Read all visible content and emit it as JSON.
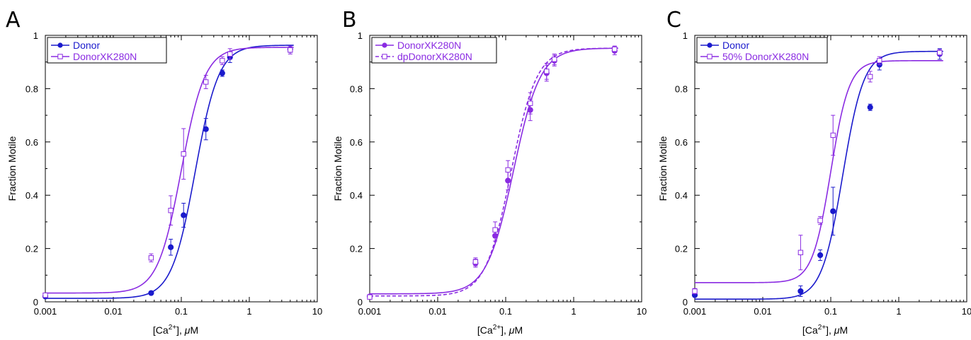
{
  "colors": {
    "donor": "#1a1acc",
    "mutant": "#8a2be2",
    "axis": "#000000"
  },
  "chart_data": [
    {
      "panel": "A",
      "type": "scatter",
      "xscale": "log",
      "xlim": [
        0.001,
        10
      ],
      "ylim": [
        0,
        1
      ],
      "xticks": [
        0.001,
        0.01,
        0.1,
        1,
        10
      ],
      "xtick_labels": [
        "0.001",
        "0.01",
        "0.1",
        "1",
        "10"
      ],
      "yticks": [
        0,
        0.2,
        0.4,
        0.6,
        0.8,
        1
      ],
      "ytick_labels": [
        "0",
        "0.2",
        "0.4",
        "0.6",
        "0.8",
        "1"
      ],
      "xlabel": "[Ca2+], μM",
      "ylabel": "Fraction Motile",
      "legend": "top-left",
      "series": [
        {
          "name": "Donor",
          "color": "#1a1acc",
          "marker": "filled-circle",
          "line": "solid",
          "fit": {
            "bottom": 0.013,
            "top": 0.963,
            "ec50": 0.16,
            "n": 2.5
          },
          "points": [
            {
              "x": 0.001,
              "y": 0.02,
              "err": 0.005
            },
            {
              "x": 0.036,
              "y": 0.033,
              "err": 0.004
            },
            {
              "x": 0.07,
              "y": 0.205,
              "err": 0.03
            },
            {
              "x": 0.108,
              "y": 0.325,
              "err": 0.045
            },
            {
              "x": 0.23,
              "y": 0.648,
              "err": 0.04
            },
            {
              "x": 0.4,
              "y": 0.858,
              "err": 0.012
            },
            {
              "x": 0.52,
              "y": 0.918,
              "err": 0.02
            },
            {
              "x": 4.0,
              "y": 0.948,
              "err": 0.012
            }
          ]
        },
        {
          "name": "DonorXK280N",
          "color": "#8a2be2",
          "marker": "open-square",
          "line": "solid",
          "fit": {
            "bottom": 0.033,
            "top": 0.955,
            "ec50": 0.1,
            "n": 2.5
          },
          "points": [
            {
              "x": 0.001,
              "y": 0.025,
              "err": 0.005
            },
            {
              "x": 0.036,
              "y": 0.165,
              "err": 0.015
            },
            {
              "x": 0.07,
              "y": 0.343,
              "err": 0.055
            },
            {
              "x": 0.108,
              "y": 0.555,
              "err": 0.095
            },
            {
              "x": 0.23,
              "y": 0.825,
              "err": 0.025
            },
            {
              "x": 0.4,
              "y": 0.905,
              "err": 0.015
            },
            {
              "x": 0.52,
              "y": 0.93,
              "err": 0.02
            },
            {
              "x": 4.0,
              "y": 0.945,
              "err": 0.015
            }
          ]
        }
      ]
    },
    {
      "panel": "B",
      "type": "scatter",
      "xscale": "log",
      "xlim": [
        0.001,
        10
      ],
      "ylim": [
        0,
        1
      ],
      "xticks": [
        0.001,
        0.01,
        0.1,
        1,
        10
      ],
      "xtick_labels": [
        "0.001",
        "0.01",
        "0.1",
        "1",
        "10"
      ],
      "yticks": [
        0,
        0.2,
        0.4,
        0.6,
        0.8,
        1
      ],
      "ytick_labels": [
        "0",
        "0.2",
        "0.4",
        "0.6",
        "0.8",
        "1"
      ],
      "xlabel": "[Ca2+], μM",
      "ylabel": "Fraction Motile",
      "legend": "top-left",
      "series": [
        {
          "name": "DonorXK280N",
          "color": "#8a2be2",
          "marker": "filled-circle",
          "line": "solid",
          "fit": {
            "bottom": 0.03,
            "top": 0.952,
            "ec50": 0.13,
            "n": 2.2
          },
          "points": [
            {
              "x": 0.001,
              "y": 0.02,
              "err": 0.006
            },
            {
              "x": 0.036,
              "y": 0.145,
              "err": 0.015
            },
            {
              "x": 0.07,
              "y": 0.248,
              "err": 0.02
            },
            {
              "x": 0.108,
              "y": 0.455,
              "err": 0.035
            },
            {
              "x": 0.23,
              "y": 0.72,
              "err": 0.04
            },
            {
              "x": 0.4,
              "y": 0.858,
              "err": 0.03
            },
            {
              "x": 0.52,
              "y": 0.905,
              "err": 0.02
            },
            {
              "x": 4.0,
              "y": 0.942,
              "err": 0.015
            }
          ]
        },
        {
          "name": "dpDonorXK280N",
          "color": "#8a2be2",
          "marker": "open-square",
          "line": "dashed",
          "fit": {
            "bottom": 0.022,
            "top": 0.952,
            "ec50": 0.12,
            "n": 2.3
          },
          "points": [
            {
              "x": 0.001,
              "y": 0.018,
              "err": 0.006
            },
            {
              "x": 0.036,
              "y": 0.15,
              "err": 0.015
            },
            {
              "x": 0.07,
              "y": 0.27,
              "err": 0.03
            },
            {
              "x": 0.108,
              "y": 0.495,
              "err": 0.035
            },
            {
              "x": 0.23,
              "y": 0.745,
              "err": 0.04
            },
            {
              "x": 0.4,
              "y": 0.865,
              "err": 0.03
            },
            {
              "x": 0.52,
              "y": 0.91,
              "err": 0.02
            },
            {
              "x": 4.0,
              "y": 0.948,
              "err": 0.012
            }
          ]
        }
      ]
    },
    {
      "panel": "C",
      "type": "scatter",
      "xscale": "log",
      "xlim": [
        0.001,
        10
      ],
      "ylim": [
        0,
        1
      ],
      "xticks": [
        0.001,
        0.01,
        0.1,
        1,
        10
      ],
      "xtick_labels": [
        "0.001",
        "0.01",
        "0.1",
        "1",
        "10"
      ],
      "yticks": [
        0,
        0.2,
        0.4,
        0.6,
        0.8,
        1
      ],
      "ytick_labels": [
        "0",
        "0.2",
        "0.4",
        "0.6",
        "0.8",
        "1"
      ],
      "xlabel": "[Ca2+], μM",
      "ylabel": "Fraction Motile",
      "legend": "top-left",
      "series": [
        {
          "name": "Donor",
          "color": "#1a1acc",
          "marker": "filled-circle",
          "line": "solid",
          "fit": {
            "bottom": 0.01,
            "top": 0.94,
            "ec50": 0.15,
            "n": 2.8
          },
          "points": [
            {
              "x": 0.001,
              "y": 0.025,
              "err": 0.005
            },
            {
              "x": 0.036,
              "y": 0.04,
              "err": 0.02
            },
            {
              "x": 0.07,
              "y": 0.175,
              "err": 0.02
            },
            {
              "x": 0.108,
              "y": 0.34,
              "err": 0.09
            },
            {
              "x": 0.38,
              "y": 0.73,
              "err": 0.012
            },
            {
              "x": 0.52,
              "y": 0.89,
              "err": 0.02
            },
            {
              "x": 4.0,
              "y": 0.93,
              "err": 0.02
            }
          ]
        },
        {
          "name": "50% DonorXK280N",
          "color": "#8a2be2",
          "marker": "open-square",
          "line": "solid",
          "fit": {
            "bottom": 0.072,
            "top": 0.905,
            "ec50": 0.1,
            "n": 3.2
          },
          "points": [
            {
              "x": 0.001,
              "y": 0.04,
              "err": 0.01
            },
            {
              "x": 0.036,
              "y": 0.185,
              "err": 0.065
            },
            {
              "x": 0.07,
              "y": 0.305,
              "err": 0.015
            },
            {
              "x": 0.108,
              "y": 0.625,
              "err": 0.075
            },
            {
              "x": 0.38,
              "y": 0.845,
              "err": 0.02
            },
            {
              "x": 0.52,
              "y": 0.905,
              "err": 0.015
            },
            {
              "x": 4.0,
              "y": 0.935,
              "err": 0.012
            }
          ]
        }
      ]
    }
  ]
}
